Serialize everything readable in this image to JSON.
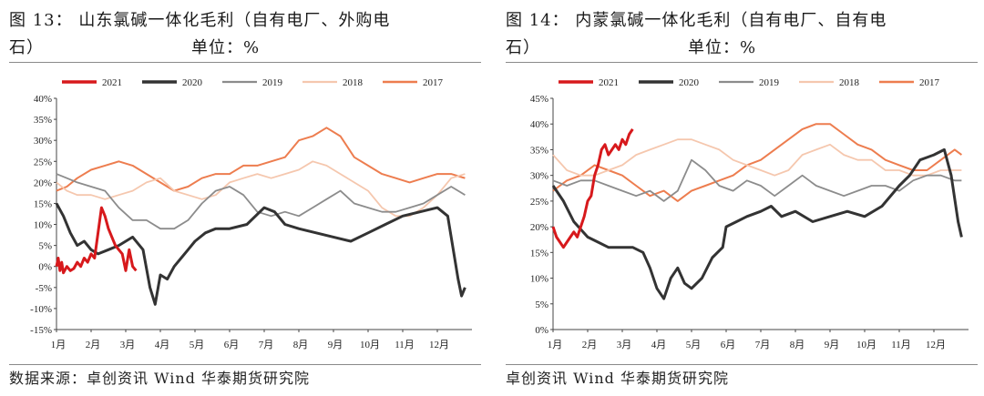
{
  "panels": [
    {
      "title_line1": "图 13：    山东氯碱一体化毛利（自有电厂、外购电",
      "title_line2": "石）",
      "unit": "单位：%",
      "source": "数据来源：卓创资讯  Wind  华泰期货研究院"
    },
    {
      "title_line1": "图 14：    内蒙氯碱一体化毛利（自有电厂、自有电",
      "title_line2": "石）",
      "unit": "单位：%",
      "source": "卓创资讯  Wind  华泰期货研究院"
    }
  ],
  "chart_data": [
    {
      "type": "line",
      "title": "山东氯碱一体化毛利（自有电厂、外购电石）",
      "ylabel": "%",
      "ylim": [
        -15,
        40
      ],
      "yticks": [
        -15,
        -10,
        -5,
        0,
        5,
        10,
        15,
        20,
        25,
        30,
        35,
        40
      ],
      "xlim": [
        1,
        13
      ],
      "xticks": [
        "1月",
        "2月",
        "3月",
        "4月",
        "5月",
        "6月",
        "7月",
        "8月",
        "9月",
        "10月",
        "11月",
        "12月"
      ],
      "legend_position": "top",
      "series": [
        {
          "name": "2021",
          "color": "#d7191c",
          "width": 3,
          "x": [
            1.0,
            1.05,
            1.1,
            1.15,
            1.2,
            1.3,
            1.4,
            1.5,
            1.6,
            1.7,
            1.8,
            1.9,
            2.0,
            2.1,
            2.2,
            2.3,
            2.4,
            2.5,
            2.6,
            2.7,
            2.8,
            2.9,
            3.0,
            3.1,
            3.2,
            3.3
          ],
          "y": [
            0,
            2,
            -1,
            1,
            -1.5,
            0,
            -1,
            -0.5,
            1,
            0,
            2,
            1,
            3,
            2,
            8,
            14,
            12,
            9,
            7,
            5,
            4,
            3,
            -1,
            4,
            0,
            -1
          ]
        },
        {
          "name": "2020",
          "color": "#333333",
          "width": 3,
          "x": [
            1.0,
            1.2,
            1.4,
            1.6,
            1.8,
            2.0,
            2.2,
            2.5,
            2.8,
            3.0,
            3.2,
            3.5,
            3.7,
            3.85,
            4.0,
            4.2,
            4.4,
            4.6,
            4.8,
            5.0,
            5.3,
            5.6,
            6.0,
            6.5,
            7.0,
            7.3,
            7.6,
            8.0,
            8.5,
            9.0,
            9.5,
            10.0,
            10.5,
            11.0,
            11.5,
            12.0,
            12.3,
            12.5,
            12.6,
            12.7,
            12.8
          ],
          "y": [
            15,
            12,
            8,
            5,
            6,
            4,
            3,
            4,
            5,
            6,
            7,
            4,
            -5,
            -9,
            -2,
            -3,
            0,
            2,
            4,
            6,
            8,
            9,
            9,
            10,
            14,
            13,
            10,
            9,
            8,
            7,
            6,
            8,
            10,
            12,
            13,
            14,
            12,
            2,
            -3,
            -7,
            -5
          ]
        },
        {
          "name": "2019",
          "color": "#8c8c8c",
          "width": 1.8,
          "x": [
            1.0,
            1.3,
            1.6,
            2.0,
            2.4,
            2.8,
            3.2,
            3.6,
            4.0,
            4.4,
            4.8,
            5.2,
            5.6,
            6.0,
            6.4,
            6.8,
            7.2,
            7.6,
            8.0,
            8.4,
            8.8,
            9.2,
            9.6,
            10.0,
            10.4,
            10.8,
            11.2,
            11.6,
            12.0,
            12.4,
            12.8
          ],
          "y": [
            22,
            21,
            20,
            19,
            18,
            14,
            11,
            11,
            9,
            9,
            11,
            15,
            18,
            19,
            17,
            13,
            12,
            13,
            12,
            14,
            16,
            18,
            15,
            14,
            13,
            13,
            14,
            15,
            17,
            19,
            17
          ]
        },
        {
          "name": "2018",
          "color": "#f5c7ae",
          "width": 1.8,
          "x": [
            1.0,
            1.3,
            1.6,
            2.0,
            2.4,
            2.8,
            3.2,
            3.6,
            4.0,
            4.4,
            4.8,
            5.2,
            5.6,
            6.0,
            6.4,
            6.8,
            7.2,
            7.6,
            8.0,
            8.4,
            8.8,
            9.2,
            9.6,
            10.0,
            10.4,
            10.8,
            11.2,
            11.6,
            12.0,
            12.4,
            12.8
          ],
          "y": [
            20,
            18,
            17,
            17,
            16,
            17,
            18,
            20,
            21,
            18,
            17,
            16,
            17,
            20,
            21,
            22,
            21,
            22,
            23,
            25,
            24,
            22,
            20,
            18,
            14,
            12,
            12,
            14,
            17,
            21,
            22
          ]
        },
        {
          "name": "2017",
          "color": "#ed7d4f",
          "width": 2,
          "x": [
            1.0,
            1.3,
            1.6,
            2.0,
            2.4,
            2.8,
            3.2,
            3.6,
            4.0,
            4.4,
            4.8,
            5.2,
            5.6,
            6.0,
            6.4,
            6.8,
            7.2,
            7.6,
            8.0,
            8.4,
            8.8,
            9.2,
            9.6,
            10.0,
            10.4,
            10.8,
            11.2,
            11.6,
            12.0,
            12.4,
            12.8
          ],
          "y": [
            18,
            19,
            21,
            23,
            24,
            25,
            24,
            22,
            20,
            18,
            19,
            21,
            22,
            22,
            24,
            24,
            25,
            26,
            30,
            31,
            33,
            31,
            26,
            24,
            22,
            21,
            20,
            21,
            22,
            22,
            21
          ]
        }
      ]
    },
    {
      "type": "line",
      "title": "内蒙氯碱一体化毛利（自有电厂、自有电石）",
      "ylabel": "%",
      "ylim": [
        0,
        45
      ],
      "yticks": [
        0,
        5,
        10,
        15,
        20,
        25,
        30,
        35,
        40,
        45
      ],
      "xlim": [
        1,
        13
      ],
      "xticks": [
        "1月",
        "2月",
        "3月",
        "4月",
        "5月",
        "6月",
        "7月",
        "8月",
        "9月",
        "10月",
        "11月",
        "12月"
      ],
      "legend_position": "top",
      "series": [
        {
          "name": "2021",
          "color": "#d7191c",
          "width": 3,
          "x": [
            1.0,
            1.1,
            1.2,
            1.3,
            1.4,
            1.5,
            1.6,
            1.7,
            1.8,
            1.9,
            2.0,
            2.1,
            2.2,
            2.3,
            2.4,
            2.5,
            2.6,
            2.7,
            2.8,
            2.9,
            3.0,
            3.1,
            3.2,
            3.3
          ],
          "y": [
            20,
            18,
            17,
            16,
            17,
            18,
            19,
            18,
            20,
            22,
            25,
            26,
            30,
            32,
            35,
            36,
            34,
            35,
            36,
            35,
            37,
            36,
            38,
            39
          ]
        },
        {
          "name": "2020",
          "color": "#333333",
          "width": 3,
          "x": [
            1.0,
            1.3,
            1.6,
            2.0,
            2.3,
            2.6,
            3.0,
            3.3,
            3.6,
            3.8,
            4.0,
            4.2,
            4.4,
            4.6,
            4.8,
            5.0,
            5.3,
            5.6,
            5.9,
            6.0,
            6.3,
            6.6,
            7.0,
            7.3,
            7.6,
            8.0,
            8.5,
            9.0,
            9.5,
            10.0,
            10.5,
            11.0,
            11.3,
            11.6,
            12.0,
            12.3,
            12.5,
            12.7,
            12.8
          ],
          "y": [
            28,
            25,
            21,
            18,
            17,
            16,
            16,
            16,
            15,
            12,
            8,
            6,
            10,
            12,
            9,
            8,
            10,
            14,
            16,
            20,
            21,
            22,
            23,
            24,
            22,
            23,
            21,
            22,
            23,
            22,
            24,
            28,
            30,
            33,
            34,
            35,
            30,
            21,
            18
          ]
        },
        {
          "name": "2019",
          "color": "#8c8c8c",
          "width": 1.8,
          "x": [
            1.0,
            1.4,
            1.8,
            2.2,
            2.6,
            3.0,
            3.4,
            3.8,
            4.2,
            4.6,
            5.0,
            5.4,
            5.8,
            6.2,
            6.6,
            7.0,
            7.4,
            7.8,
            8.2,
            8.6,
            9.0,
            9.4,
            9.8,
            10.2,
            10.6,
            11.0,
            11.4,
            11.8,
            12.2,
            12.6,
            12.8
          ],
          "y": [
            29,
            28,
            29,
            29,
            28,
            27,
            26,
            27,
            25,
            27,
            33,
            31,
            28,
            27,
            29,
            28,
            26,
            28,
            30,
            28,
            27,
            26,
            27,
            28,
            28,
            27,
            29,
            30,
            30,
            29,
            29
          ]
        },
        {
          "name": "2018",
          "color": "#f5c7ae",
          "width": 1.8,
          "x": [
            1.0,
            1.4,
            1.8,
            2.2,
            2.6,
            3.0,
            3.4,
            3.8,
            4.2,
            4.6,
            5.0,
            5.4,
            5.8,
            6.2,
            6.6,
            7.0,
            7.4,
            7.8,
            8.2,
            8.6,
            9.0,
            9.4,
            9.8,
            10.2,
            10.6,
            11.0,
            11.4,
            11.8,
            12.2,
            12.6,
            12.8
          ],
          "y": [
            34,
            31,
            30,
            30,
            31,
            32,
            34,
            35,
            36,
            37,
            37,
            36,
            35,
            33,
            32,
            31,
            30,
            31,
            34,
            35,
            36,
            34,
            33,
            33,
            31,
            31,
            30,
            30,
            31,
            31,
            31
          ]
        },
        {
          "name": "2017",
          "color": "#ed7d4f",
          "width": 2,
          "x": [
            1.0,
            1.4,
            1.8,
            2.2,
            2.6,
            3.0,
            3.4,
            3.8,
            4.2,
            4.6,
            5.0,
            5.4,
            5.8,
            6.2,
            6.6,
            7.0,
            7.4,
            7.8,
            8.2,
            8.6,
            9.0,
            9.4,
            9.8,
            10.2,
            10.6,
            11.0,
            11.4,
            11.8,
            12.2,
            12.6,
            12.8
          ],
          "y": [
            27,
            29,
            30,
            32,
            31,
            30,
            28,
            26,
            27,
            25,
            27,
            28,
            29,
            30,
            32,
            33,
            35,
            37,
            39,
            40,
            40,
            38,
            36,
            35,
            33,
            32,
            31,
            31,
            33,
            35,
            34
          ]
        }
      ]
    }
  ]
}
